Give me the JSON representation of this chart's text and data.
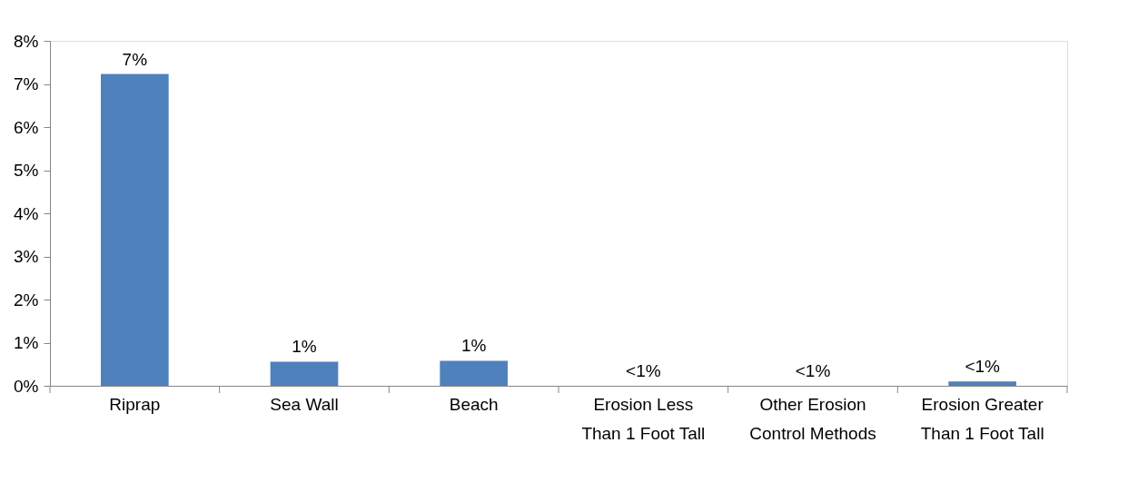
{
  "chart_data": {
    "type": "bar",
    "categories": [
      "Riprap",
      "Sea Wall",
      "Beach",
      "Erosion Less Than 1 Foot Tall",
      "Other Erosion Control Methods",
      "Erosion Greater Than 1 Foot Tall"
    ],
    "values": [
      7.23,
      0.56,
      0.58,
      0,
      0,
      0.1
    ],
    "value_labels": [
      "7%",
      "1%",
      "1%",
      "<1%",
      "<1%",
      "<1%"
    ],
    "color": "#4f81bd",
    "ylim": [
      0,
      8
    ],
    "yticks": [
      {
        "value": 0,
        "label": "0%"
      },
      {
        "value": 1,
        "label": "1%"
      },
      {
        "value": 2,
        "label": "2%"
      },
      {
        "value": 3,
        "label": "3%"
      },
      {
        "value": 4,
        "label": "4%"
      },
      {
        "value": 5,
        "label": "5%"
      },
      {
        "value": 6,
        "label": "6%"
      },
      {
        "value": 7,
        "label": "7%"
      },
      {
        "value": 8,
        "label": "8%"
      }
    ],
    "grid": false
  }
}
